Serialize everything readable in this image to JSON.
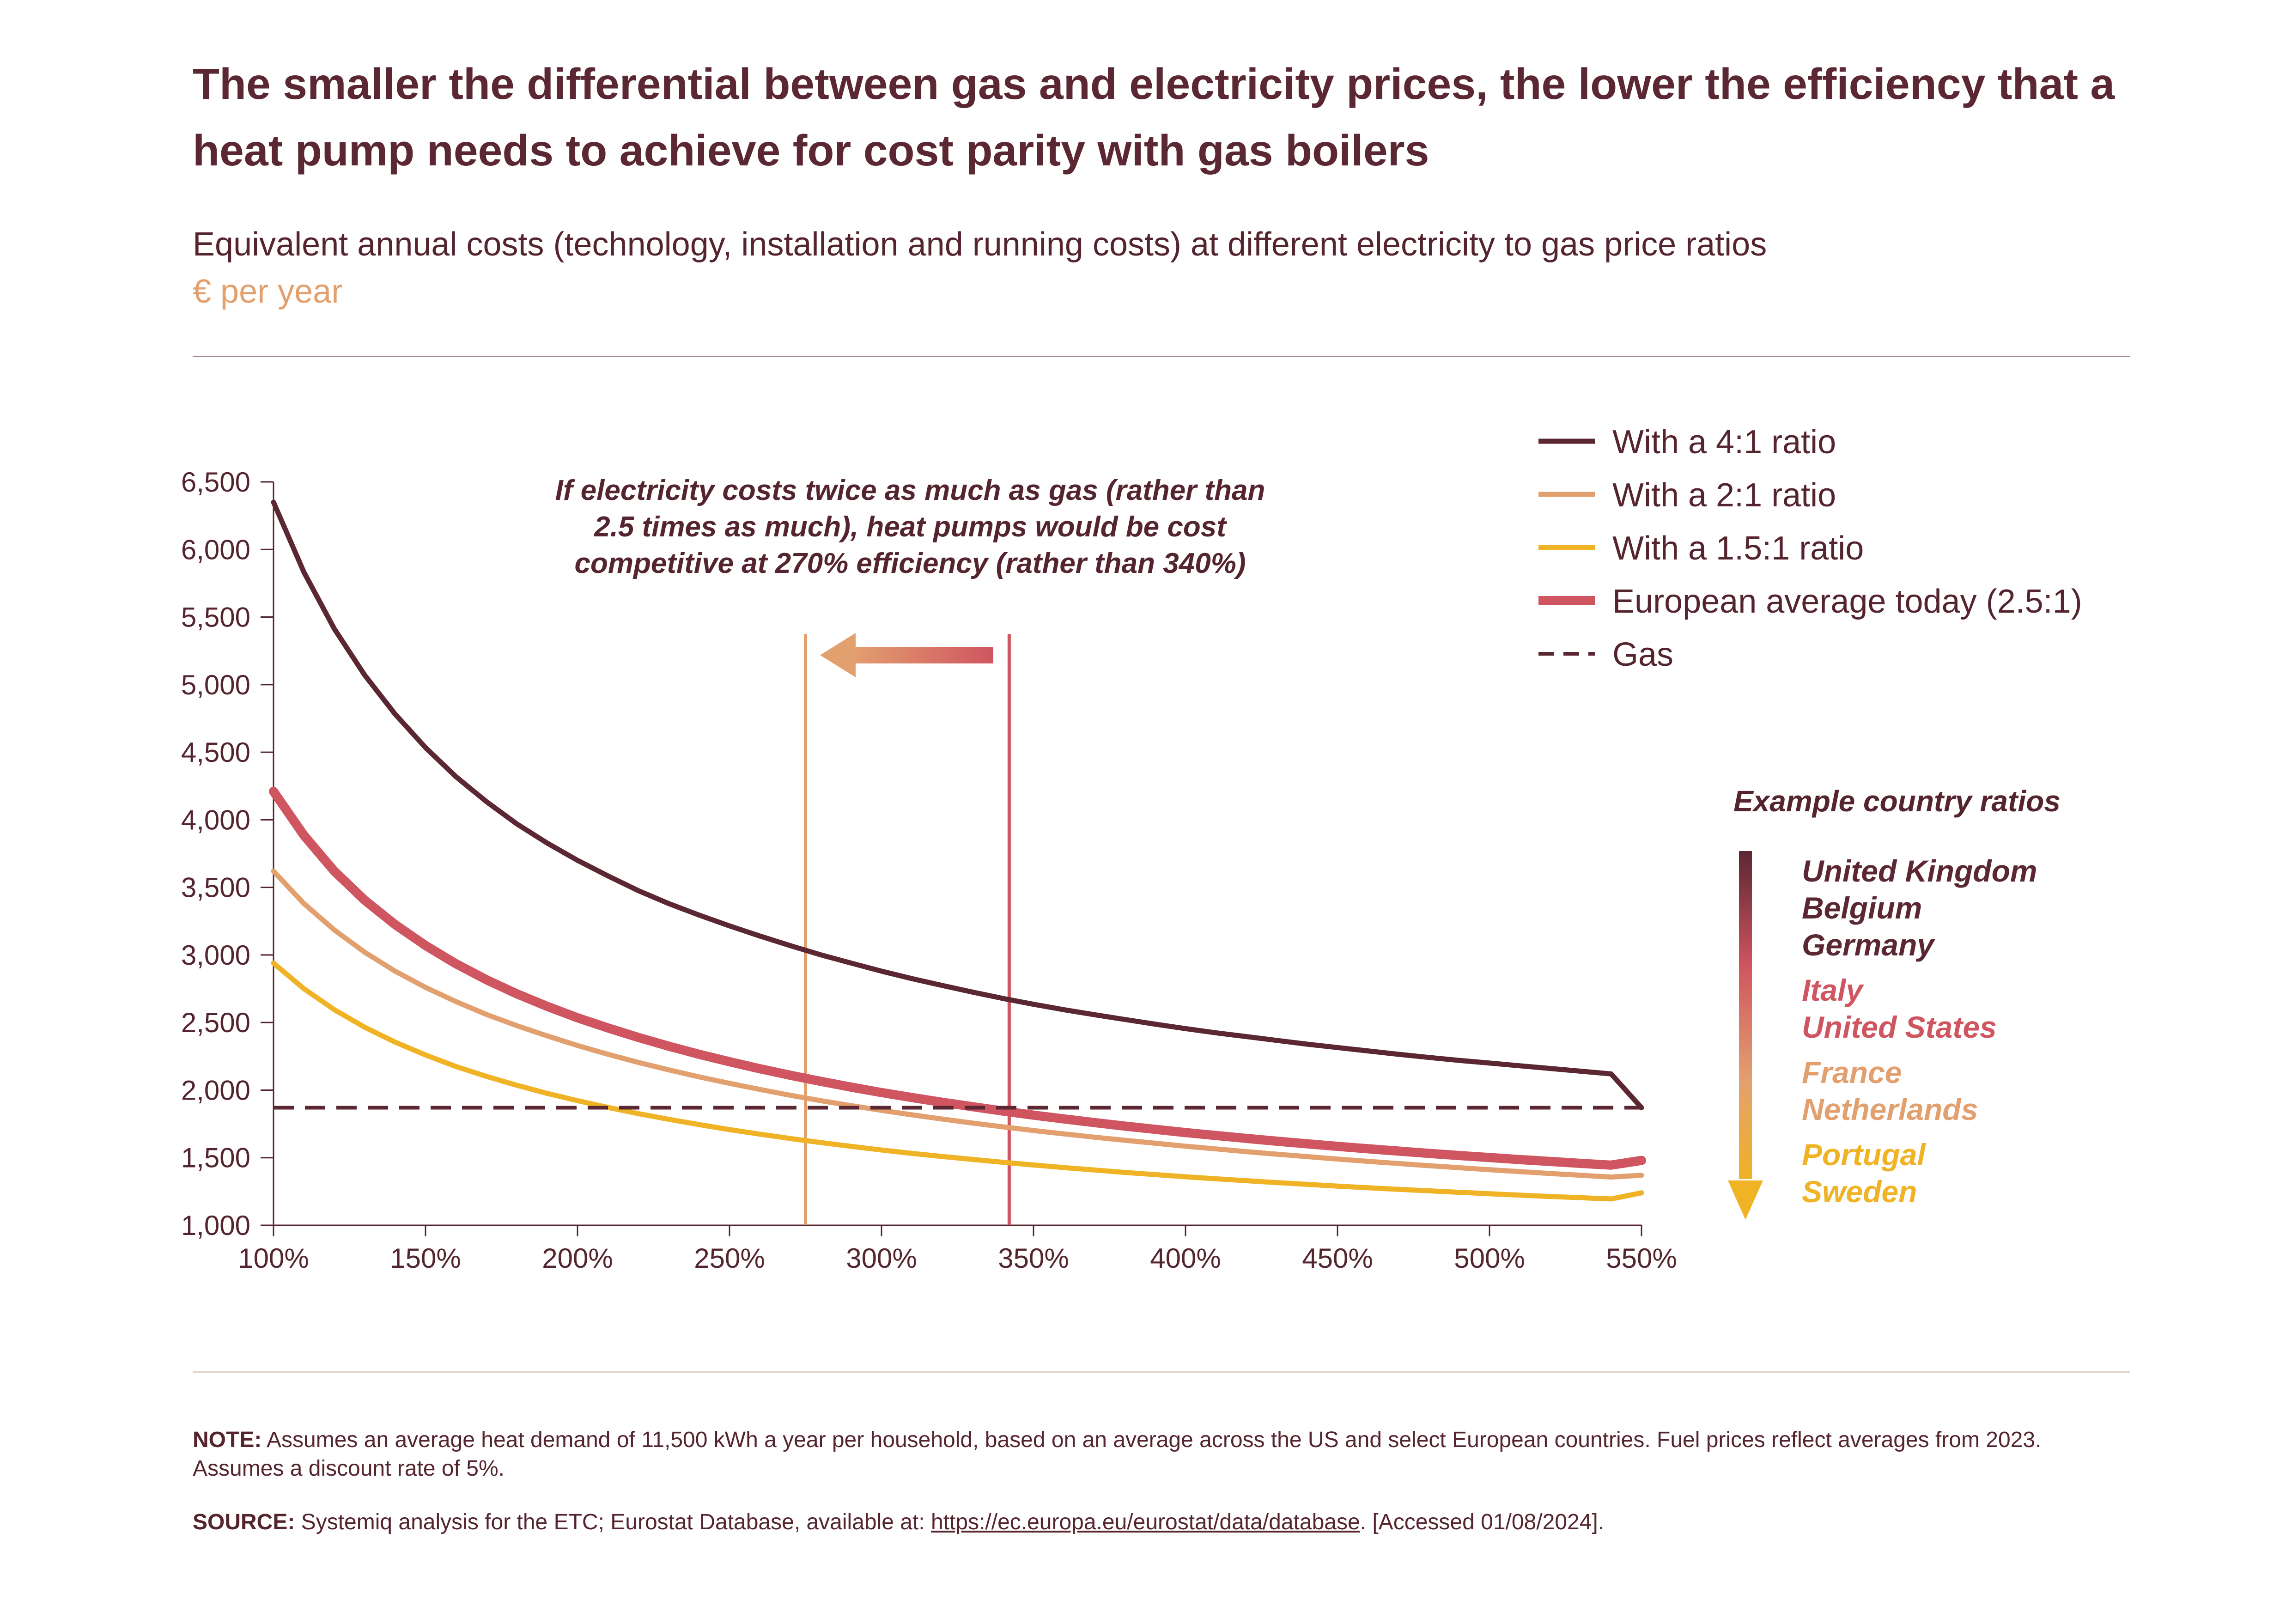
{
  "title": "The smaller the differential between gas and electricity prices, the lower the efficiency that a heat pump needs to achieve for cost parity with gas boilers",
  "subtitle": "Equivalent annual costs (technology, installation and running costs) at different electricity to gas price ratios",
  "unit": "€ per year",
  "note": {
    "label": "NOTE:",
    "text": " Assumes an average heat demand of 11,500 kWh a year per household, based on an average across the US and select European countries. Fuel prices reflect averages from 2023. Assumes a discount rate of 5%."
  },
  "source": {
    "label": "SOURCE:",
    "text_before": " Systemiq analysis for the ETC; Eurostat Database, available at: ",
    "link": "https://ec.europa.eu/eurostat/data/database",
    "text_after": ". [Accessed 01/08/2024]."
  },
  "countries": {
    "heading": "Example country ratios",
    "groups": [
      {
        "color": "#5a2733",
        "names": [
          "United Kingdom",
          "Belgium",
          "Germany"
        ]
      },
      {
        "color": "#cf5560",
        "names": [
          "Italy",
          "United States"
        ]
      },
      {
        "color": "#e3a06f",
        "names": [
          "France",
          "Netherlands"
        ]
      },
      {
        "color": "#efb325",
        "names": [
          "Portugal",
          "Sweden"
        ]
      }
    ]
  },
  "chart_data": {
    "type": "line",
    "title": "",
    "xlabel": "",
    "ylabel": "€ per year",
    "x": [
      100,
      110,
      120,
      130,
      140,
      150,
      160,
      170,
      180,
      190,
      200,
      210,
      220,
      230,
      240,
      250,
      260,
      270,
      280,
      290,
      300,
      310,
      320,
      330,
      340,
      350,
      360,
      370,
      380,
      390,
      400,
      410,
      420,
      430,
      440,
      450,
      460,
      470,
      480,
      490,
      500,
      510,
      520,
      530,
      540,
      550
    ],
    "xlim": [
      100,
      550
    ],
    "ylim": [
      1000,
      6500
    ],
    "x_ticks": [
      "100%",
      "150%",
      "200%",
      "250%",
      "300%",
      "350%",
      "400%",
      "450%",
      "500%",
      "550%"
    ],
    "y_ticks": [
      "1,000",
      "1,500",
      "2,000",
      "2,500",
      "3,000",
      "3,500",
      "4,000",
      "4,500",
      "5,000",
      "5,500",
      "6,000",
      "6,500"
    ],
    "series": [
      {
        "name": "With a 4:1 ratio",
        "color": "#5a2733",
        "dash": false,
        "values": [
          6350,
          5832,
          5413,
          5070,
          4782,
          4534,
          4319,
          4135,
          3970,
          3828,
          3700,
          3585,
          3476,
          3380,
          3295,
          3215,
          3140,
          3069,
          3001,
          2940,
          2880,
          2825,
          2774,
          2725,
          2678,
          2635,
          2595,
          2558,
          2523,
          2488,
          2455,
          2424,
          2396,
          2368,
          2340,
          2315,
          2290,
          2265,
          2242,
          2220,
          2200,
          2180,
          2160,
          2140,
          2120,
          1870
        ]
      },
      {
        "name": "With a 2:1 ratio",
        "color": "#e3a06f",
        "dash": false,
        "values": [
          3620,
          3380,
          3185,
          3020,
          2880,
          2760,
          2655,
          2560,
          2477,
          2401,
          2330,
          2265,
          2205,
          2150,
          2098,
          2050,
          2005,
          1962,
          1922,
          1885,
          1850,
          1817,
          1786,
          1756,
          1728,
          1701,
          1676,
          1652,
          1629,
          1607,
          1585,
          1565,
          1545,
          1526,
          1508,
          1490,
          1473,
          1457,
          1441,
          1426,
          1411,
          1397,
          1383,
          1370,
          1357,
          1370
        ]
      },
      {
        "name": "With a 1.5:1 ratio",
        "color": "#efb325",
        "dash": false,
        "values": [
          2940,
          2750,
          2595,
          2465,
          2355,
          2260,
          2175,
          2102,
          2036,
          1976,
          1922,
          1872,
          1826,
          1784,
          1745,
          1708,
          1674,
          1642,
          1612,
          1584,
          1557,
          1532,
          1509,
          1487,
          1466,
          1446,
          1427,
          1409,
          1391,
          1375,
          1359,
          1344,
          1330,
          1316,
          1303,
          1290,
          1278,
          1266,
          1255,
          1244,
          1233,
          1223,
          1213,
          1204,
          1195,
          1240
        ]
      },
      {
        "name": "European average today (2.5:1)",
        "color": "#cf5560",
        "dash": false,
        "values": [
          4210,
          3885,
          3620,
          3405,
          3225,
          3070,
          2935,
          2817,
          2713,
          2620,
          2535,
          2460,
          2390,
          2325,
          2265,
          2210,
          2158,
          2110,
          2065,
          2022,
          1982,
          1945,
          1910,
          1877,
          1845,
          1815,
          1787,
          1760,
          1734,
          1710,
          1686,
          1664,
          1643,
          1622,
          1603,
          1584,
          1566,
          1549,
          1532,
          1516,
          1501,
          1486,
          1472,
          1458,
          1445,
          1480
        ]
      },
      {
        "name": "Gas",
        "color": "#5a2733",
        "dash": true,
        "values": [
          1870,
          1870,
          1870,
          1870,
          1870,
          1870,
          1870,
          1870,
          1870,
          1870,
          1870,
          1870,
          1870,
          1870,
          1870,
          1870,
          1870,
          1870,
          1870,
          1870,
          1870,
          1870,
          1870,
          1870,
          1870,
          1870,
          1870,
          1870,
          1870,
          1870,
          1870,
          1870,
          1870,
          1870,
          1870,
          1870,
          1870,
          1870,
          1870,
          1870,
          1870,
          1870,
          1870,
          1870,
          1870,
          1870
        ]
      }
    ],
    "vertical_markers": [
      {
        "x": 275,
        "color": "#e3a06f"
      },
      {
        "x": 342,
        "color": "#cf5560"
      }
    ],
    "annotation": [
      "If electricity costs twice as much as gas (rather than",
      "2.5 times as much), heat pumps would be cost",
      "competitive at 270% efficiency (rather than 340%)"
    ]
  }
}
